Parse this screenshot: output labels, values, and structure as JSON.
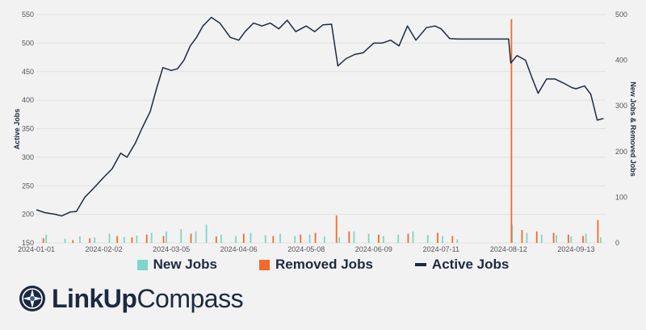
{
  "colors": {
    "new": "#7dd6c7",
    "removed": "#f26a2b",
    "active": "#1b2a41",
    "grid": "#e0e0e0",
    "background": "#f2f2f2"
  },
  "chart_data": {
    "type": "line+bar",
    "title": "",
    "x_tick_labels": [
      "2024-01-01",
      "2024-02-02",
      "2024-03-05",
      "2024-04-06",
      "2024-05-08",
      "2024-06-09",
      "2024-07-11",
      "2024-08-12",
      "2024-09-13"
    ],
    "xlim": [
      "2024-01-01",
      "2024-09-27"
    ],
    "y_left": {
      "label": "Active Jobs",
      "lim": [
        150,
        550
      ],
      "ticks": [
        150,
        200,
        250,
        300,
        350,
        400,
        450,
        500,
        550
      ]
    },
    "y_right": {
      "label": "New Jobs & Removed Jobs",
      "lim": [
        0,
        500
      ],
      "ticks": [
        0,
        100,
        200,
        300,
        400,
        500
      ]
    },
    "grid": true,
    "legend_position": "bottom",
    "series": [
      {
        "name": "Active Jobs",
        "kind": "line",
        "axis": "left",
        "points": [
          [
            "2024-01-01",
            208
          ],
          [
            "2024-01-05",
            203
          ],
          [
            "2024-01-10",
            200
          ],
          [
            "2024-01-13",
            197
          ],
          [
            "2024-01-17",
            204
          ],
          [
            "2024-01-20",
            205
          ],
          [
            "2024-01-24",
            230
          ],
          [
            "2024-01-28",
            245
          ],
          [
            "2024-02-02",
            265
          ],
          [
            "2024-02-06",
            280
          ],
          [
            "2024-02-10",
            307
          ],
          [
            "2024-02-13",
            300
          ],
          [
            "2024-02-17",
            325
          ],
          [
            "2024-02-20",
            350
          ],
          [
            "2024-02-24",
            380
          ],
          [
            "2024-02-27",
            420
          ],
          [
            "2024-03-01",
            457
          ],
          [
            "2024-03-05",
            452
          ],
          [
            "2024-03-08",
            455
          ],
          [
            "2024-03-11",
            470
          ],
          [
            "2024-03-14",
            495
          ],
          [
            "2024-03-17",
            510
          ],
          [
            "2024-03-20",
            530
          ],
          [
            "2024-03-24",
            545
          ],
          [
            "2024-03-28",
            535
          ],
          [
            "2024-04-02",
            510
          ],
          [
            "2024-04-06",
            505
          ],
          [
            "2024-04-09",
            520
          ],
          [
            "2024-04-13",
            535
          ],
          [
            "2024-04-17",
            530
          ],
          [
            "2024-04-21",
            535
          ],
          [
            "2024-04-25",
            525
          ],
          [
            "2024-04-29",
            540
          ],
          [
            "2024-05-03",
            520
          ],
          [
            "2024-05-08",
            530
          ],
          [
            "2024-05-12",
            520
          ],
          [
            "2024-05-16",
            532
          ],
          [
            "2024-05-20",
            533
          ],
          [
            "2024-05-23",
            460
          ],
          [
            "2024-05-27",
            473
          ],
          [
            "2024-05-31",
            480
          ],
          [
            "2024-06-04",
            483
          ],
          [
            "2024-06-09",
            500
          ],
          [
            "2024-06-13",
            500
          ],
          [
            "2024-06-17",
            505
          ],
          [
            "2024-06-21",
            495
          ],
          [
            "2024-06-25",
            530
          ],
          [
            "2024-06-29",
            505
          ],
          [
            "2024-07-04",
            527
          ],
          [
            "2024-07-08",
            530
          ],
          [
            "2024-07-11",
            525
          ],
          [
            "2024-07-15",
            508
          ],
          [
            "2024-07-19",
            507
          ],
          [
            "2024-07-24",
            507
          ],
          [
            "2024-07-29",
            507
          ],
          [
            "2024-08-03",
            507
          ],
          [
            "2024-08-08",
            507
          ],
          [
            "2024-08-12",
            507
          ],
          [
            "2024-08-13",
            465
          ],
          [
            "2024-08-16",
            478
          ],
          [
            "2024-08-20",
            470
          ],
          [
            "2024-08-23",
            440
          ],
          [
            "2024-08-26",
            412
          ],
          [
            "2024-08-30",
            437
          ],
          [
            "2024-09-03",
            437
          ],
          [
            "2024-09-07",
            430
          ],
          [
            "2024-09-11",
            422
          ],
          [
            "2024-09-13",
            420
          ],
          [
            "2024-09-17",
            425
          ],
          [
            "2024-09-20",
            410
          ],
          [
            "2024-09-23",
            365
          ],
          [
            "2024-09-26",
            368
          ]
        ]
      },
      {
        "name": "New Jobs",
        "kind": "bar",
        "axis": "right",
        "points": [
          [
            "2024-01-06",
            18
          ],
          [
            "2024-01-15",
            9
          ],
          [
            "2024-01-22",
            14
          ],
          [
            "2024-01-29",
            12
          ],
          [
            "2024-02-05",
            20
          ],
          [
            "2024-02-12",
            13
          ],
          [
            "2024-02-18",
            16
          ],
          [
            "2024-02-25",
            22
          ],
          [
            "2024-03-03",
            25
          ],
          [
            "2024-03-10",
            30
          ],
          [
            "2024-03-17",
            25
          ],
          [
            "2024-03-22",
            40
          ],
          [
            "2024-03-29",
            18
          ],
          [
            "2024-04-05",
            15
          ],
          [
            "2024-04-12",
            22
          ],
          [
            "2024-04-19",
            17
          ],
          [
            "2024-04-26",
            20
          ],
          [
            "2024-05-03",
            15
          ],
          [
            "2024-05-10",
            18
          ],
          [
            "2024-05-17",
            14
          ],
          [
            "2024-05-24",
            12
          ],
          [
            "2024-05-31",
            25
          ],
          [
            "2024-06-07",
            20
          ],
          [
            "2024-06-14",
            15
          ],
          [
            "2024-06-21",
            18
          ],
          [
            "2024-06-28",
            25
          ],
          [
            "2024-07-05",
            17
          ],
          [
            "2024-07-12",
            15
          ],
          [
            "2024-07-19",
            8
          ],
          [
            "2024-08-14",
            40
          ],
          [
            "2024-08-21",
            22
          ],
          [
            "2024-08-28",
            18
          ],
          [
            "2024-09-04",
            17
          ],
          [
            "2024-09-11",
            14
          ],
          [
            "2024-09-18",
            20
          ],
          [
            "2024-09-25",
            12
          ]
        ]
      },
      {
        "name": "Removed Jobs",
        "kind": "bar",
        "axis": "right",
        "points": [
          [
            "2024-01-04",
            10
          ],
          [
            "2024-01-18",
            6
          ],
          [
            "2024-01-26",
            10
          ],
          [
            "2024-02-08",
            15
          ],
          [
            "2024-02-15",
            12
          ],
          [
            "2024-02-22",
            18
          ],
          [
            "2024-03-01",
            15
          ],
          [
            "2024-03-14",
            20
          ],
          [
            "2024-03-26",
            14
          ],
          [
            "2024-04-08",
            20
          ],
          [
            "2024-04-22",
            15
          ],
          [
            "2024-05-05",
            18
          ],
          [
            "2024-05-12",
            22
          ],
          [
            "2024-05-22",
            60
          ],
          [
            "2024-05-28",
            25
          ],
          [
            "2024-06-11",
            18
          ],
          [
            "2024-06-25",
            20
          ],
          [
            "2024-07-09",
            22
          ],
          [
            "2024-07-16",
            15
          ],
          [
            "2024-08-13",
            490
          ],
          [
            "2024-08-18",
            28
          ],
          [
            "2024-08-25",
            25
          ],
          [
            "2024-09-02",
            22
          ],
          [
            "2024-09-09",
            18
          ],
          [
            "2024-09-16",
            15
          ],
          [
            "2024-09-23",
            50
          ]
        ]
      }
    ]
  },
  "legend": {
    "new": "New Jobs",
    "removed": "Removed Jobs",
    "active": "Active Jobs"
  },
  "logo": {
    "part1": "LinkUp",
    "part2": "Compass"
  }
}
